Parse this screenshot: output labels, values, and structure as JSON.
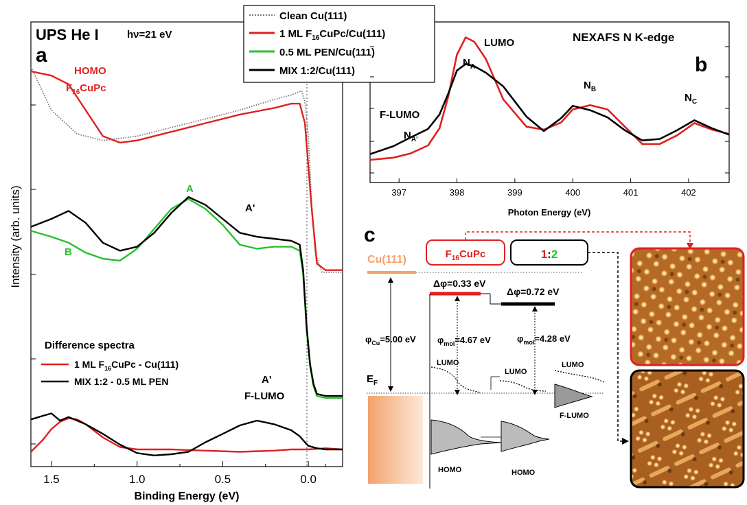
{
  "panel_a": {
    "letter": "a",
    "title": "UPS He I",
    "hv_symbol": "hν",
    "hv_value": "=21 eV",
    "ylabel": "Intensity (arb. units)",
    "xlabel": "Binding Energy (eV)",
    "homo_label_line1": "HOMO",
    "homo_label_line2_main": "F",
    "homo_label_line2_sub": "16",
    "homo_label_line2_tail": "CuPc",
    "label_A": "A",
    "label_B": "B",
    "label_Aprime_mid": "A'",
    "label_Aprime_low": "A'",
    "label_flumo": "F-LUMO",
    "diff_title": "Difference spectra",
    "diff_legend": [
      {
        "name_main": "1 ML F",
        "name_sub": "16",
        "name_tail": "CuPc - Cu(111)",
        "color": "#e0201f"
      },
      {
        "name_main": "MIX 1:2 - 0.5 ML PEN",
        "name_sub": "",
        "name_tail": "",
        "color": "#000000"
      }
    ]
  },
  "legend": [
    {
      "name_main": "Clean Cu(111)",
      "name_sub": "",
      "name_tail": "",
      "color": "#777777",
      "dash": true
    },
    {
      "name_main": "1 ML F",
      "name_sub": "16",
      "name_tail": "CuPc/Cu(111)",
      "color": "#e0201f",
      "dash": false
    },
    {
      "name_main": "0.5 ML PEN/Cu(111)",
      "name_sub": "",
      "name_tail": "",
      "color": "#27c12a",
      "dash": false
    },
    {
      "name_main": "MIX 1:2/Cu(111)",
      "name_sub": "",
      "name_tail": "",
      "color": "#000000",
      "dash": false
    }
  ],
  "panel_b": {
    "letter": "b",
    "title": "NEXAFS N K-edge",
    "xlabel": "Photon Energy (eV)",
    "label_lumo": "LUMO",
    "label_flumo": "F-LUMO",
    "label_NA": "N",
    "label_NA_sub": "A",
    "label_NAp": "N",
    "label_NAp_sub": "A'",
    "label_NB": "N",
    "label_NB_sub": "B",
    "label_NC": "N",
    "label_NC_sub": "C"
  },
  "panel_c": {
    "letter": "c",
    "cu_label": "Cu(111)",
    "box1_main": "F",
    "box1_sub": "16",
    "box1_tail": "CuPc",
    "box2_a": "1",
    "box2_colon": ":",
    "box2_b": "2",
    "dphi1": "Δφ=0.33 eV",
    "dphi2": "Δφ=0.72 eV",
    "phi_cu_main": "φ",
    "phi_cu_sub": "Cu",
    "phi_cu_tail": "=5.00 eV",
    "phi_mol1_main": "φ",
    "phi_mol1_sub": "mol",
    "phi_mol1_tail": "=4.67 eV",
    "phi_mol2_main": "φ",
    "phi_mol2_sub": "mol",
    "phi_mol2_tail": "=4.28 eV",
    "ef_main": "E",
    "ef_sub": "F",
    "lumo1": "LUMO",
    "lumo2": "LUMO",
    "lumo3": "LUMO",
    "homo1": "HOMO",
    "homo2": "HOMO",
    "flumo": "F-LUMO"
  },
  "chart_data": [
    {
      "type": "line",
      "title": "UPS He I",
      "xlabel": "Binding Energy (eV)",
      "ylabel": "Intensity (arb. units)",
      "xlim": [
        1.62,
        -0.2
      ],
      "x_reversed": true,
      "xticks": [
        1.5,
        1.0,
        0.5,
        0.0
      ],
      "xtick_labels": [
        "1.5",
        "1.0",
        "0.5",
        "0.0"
      ],
      "ylim": [
        0,
        10
      ],
      "series": [
        {
          "name": "Clean Cu(111)",
          "color": "#777777",
          "dash": "dot",
          "x": [
            1.62,
            1.5,
            1.35,
            1.2,
            1.0,
            0.8,
            0.6,
            0.4,
            0.2,
            0.1,
            0.04,
            0.02,
            0.0,
            -0.02,
            -0.04,
            -0.08,
            -0.2
          ],
          "y": [
            8.1,
            7.1,
            6.55,
            6.4,
            6.5,
            6.7,
            6.9,
            7.1,
            7.35,
            7.45,
            7.55,
            7.3,
            6.5,
            4.9,
            3.8,
            3.35,
            3.35
          ]
        },
        {
          "name": "1 ML F16CuPc/Cu(111)",
          "color": "#e0201f",
          "x": [
            1.62,
            1.5,
            1.4,
            1.3,
            1.2,
            1.1,
            1.0,
            0.8,
            0.6,
            0.4,
            0.2,
            0.1,
            0.05,
            0.02,
            0.0,
            -0.02,
            -0.05,
            -0.1,
            -0.2
          ],
          "y": [
            8.0,
            7.9,
            7.7,
            7.1,
            6.5,
            6.35,
            6.4,
            6.6,
            6.8,
            7.0,
            7.15,
            7.25,
            7.25,
            6.8,
            5.8,
            4.8,
            3.55,
            3.4,
            3.4
          ]
        },
        {
          "name": "0.5 ML PEN/Cu(111)",
          "color": "#27c12a",
          "x": [
            1.62,
            1.5,
            1.4,
            1.3,
            1.2,
            1.1,
            1.0,
            0.9,
            0.8,
            0.7,
            0.6,
            0.5,
            0.4,
            0.3,
            0.2,
            0.1,
            0.05,
            0.03,
            0.01,
            -0.01,
            -0.03,
            -0.05,
            -0.1,
            -0.2
          ],
          "y": [
            4.8,
            4.65,
            4.5,
            4.25,
            4.1,
            4.05,
            4.35,
            4.85,
            5.35,
            5.6,
            5.35,
            4.95,
            4.45,
            4.35,
            4.4,
            4.4,
            4.3,
            3.7,
            2.3,
            1.4,
            0.9,
            0.65,
            0.6,
            0.6
          ]
        },
        {
          "name": "MIX 1:2/Cu(111)",
          "color": "#000000",
          "x": [
            1.62,
            1.5,
            1.4,
            1.3,
            1.2,
            1.1,
            1.0,
            0.9,
            0.8,
            0.7,
            0.6,
            0.5,
            0.4,
            0.3,
            0.2,
            0.1,
            0.05,
            0.03,
            0.01,
            -0.01,
            -0.03,
            -0.05,
            -0.1,
            -0.2
          ],
          "y": [
            4.9,
            5.1,
            5.3,
            5.0,
            4.5,
            4.3,
            4.4,
            4.75,
            5.25,
            5.65,
            5.45,
            5.1,
            4.75,
            4.65,
            4.6,
            4.55,
            4.45,
            3.8,
            2.4,
            1.45,
            0.95,
            0.7,
            0.65,
            0.65
          ]
        },
        {
          "name": "1 ML F16CuPc - Cu(111)",
          "color": "#e0201f",
          "x": [
            1.62,
            1.55,
            1.5,
            1.45,
            1.4,
            1.35,
            1.3,
            1.2,
            1.1,
            1.0,
            0.8,
            0.6,
            0.4,
            0.2,
            0.1,
            0.0,
            -0.1,
            -0.2
          ],
          "y": [
            -1.7,
            -1.2,
            -0.75,
            -0.45,
            -0.3,
            -0.35,
            -0.55,
            -1.1,
            -1.5,
            -1.6,
            -1.6,
            -1.65,
            -1.7,
            -1.65,
            -1.6,
            -1.6,
            -1.55,
            -1.6
          ]
        },
        {
          "name": "MIX 1:2 - 0.5 ML PEN",
          "color": "#000000",
          "x": [
            1.62,
            1.55,
            1.5,
            1.45,
            1.4,
            1.35,
            1.3,
            1.2,
            1.1,
            1.0,
            0.9,
            0.8,
            0.7,
            0.6,
            0.5,
            0.4,
            0.3,
            0.2,
            0.1,
            0.05,
            0.02,
            0.0,
            -0.05,
            -0.1,
            -0.2
          ],
          "y": [
            -0.35,
            -0.2,
            -0.1,
            -0.4,
            -0.25,
            -0.4,
            -0.55,
            -0.95,
            -1.4,
            -1.75,
            -1.85,
            -1.8,
            -1.7,
            -1.3,
            -0.95,
            -0.6,
            -0.4,
            -0.55,
            -0.8,
            -1.05,
            -1.3,
            -1.45,
            -1.55,
            -1.6,
            -1.6
          ]
        }
      ]
    },
    {
      "type": "line",
      "title": "NEXAFS N K-edge",
      "xlabel": "Photon Energy (eV)",
      "xlim": [
        396.5,
        402.7
      ],
      "xticks": [
        397,
        398,
        399,
        400,
        401,
        402
      ],
      "xtick_labels": [
        "397",
        "398",
        "399",
        "400",
        "401",
        "402"
      ],
      "ylim": [
        0,
        10
      ],
      "series": [
        {
          "name": "1 ML F16CuPc/Cu(111)",
          "color": "#e0201f",
          "x": [
            396.5,
            396.9,
            397.2,
            397.5,
            397.7,
            397.85,
            398.0,
            398.15,
            398.3,
            398.5,
            398.8,
            399.2,
            399.5,
            399.8,
            400.0,
            400.3,
            400.6,
            400.9,
            401.2,
            401.5,
            401.8,
            402.1,
            402.4,
            402.7
          ],
          "y": [
            1.0,
            1.15,
            1.45,
            2.0,
            3.2,
            5.4,
            8.3,
            9.5,
            9.2,
            8.0,
            5.2,
            3.3,
            3.1,
            3.6,
            4.5,
            4.8,
            4.5,
            3.3,
            2.1,
            2.1,
            2.7,
            3.55,
            3.1,
            2.8
          ]
        },
        {
          "name": "MIX 1:2/Cu(111)",
          "color": "#000000",
          "x": [
            396.5,
            396.9,
            397.2,
            397.5,
            397.7,
            397.85,
            398.0,
            398.15,
            398.3,
            398.5,
            398.8,
            399.2,
            399.5,
            399.8,
            400.0,
            400.3,
            400.6,
            400.9,
            401.2,
            401.5,
            401.8,
            402.1,
            402.4,
            402.7
          ],
          "y": [
            1.4,
            1.95,
            2.55,
            3.15,
            4.15,
            5.6,
            7.2,
            7.65,
            7.5,
            7.05,
            6.1,
            4.0,
            3.0,
            3.9,
            4.75,
            4.45,
            3.95,
            3.05,
            2.35,
            2.45,
            3.05,
            3.75,
            3.2,
            2.75
          ]
        }
      ]
    }
  ]
}
